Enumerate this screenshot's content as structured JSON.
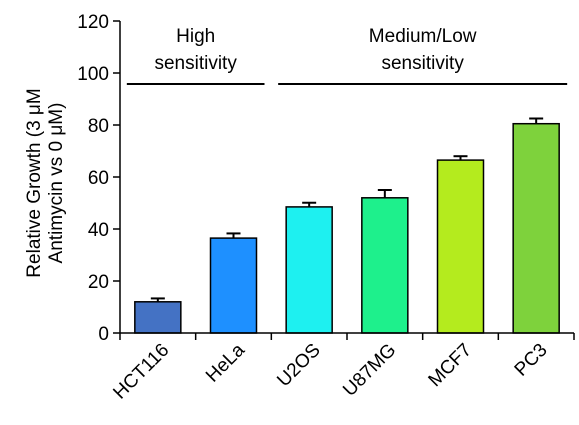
{
  "chart_data": {
    "type": "bar",
    "categories": [
      "HCT116",
      "HeLa",
      "U2OS",
      "U87MG",
      "MCF7",
      "PC3"
    ],
    "values": [
      12,
      36.5,
      48.5,
      52,
      66.5,
      80.5
    ],
    "errors": [
      1.3,
      1.8,
      1.6,
      3.0,
      1.5,
      2.0
    ],
    "colors": [
      "#4472C4",
      "#1E90FF",
      "#1EF0F0",
      "#1EF08C",
      "#B4EB1E",
      "#7ED23C"
    ],
    "ylabel_line1": "Relative Growth (3 μM",
    "ylabel_line2": "Antimycin vs 0 μM)",
    "ylim": [
      0,
      120
    ],
    "yticks": [
      "0",
      "20",
      "40",
      "60",
      "80",
      "100",
      "120"
    ],
    "grid": false,
    "groups": [
      {
        "line1": "High",
        "line2": "sensitivity",
        "from": 0,
        "to": 1
      },
      {
        "line1": "Medium/Low",
        "line2": "sensitivity",
        "from": 2,
        "to": 5
      }
    ]
  }
}
